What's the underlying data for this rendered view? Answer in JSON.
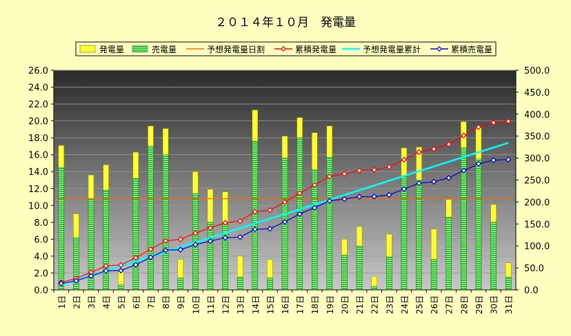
{
  "chart_data": {
    "type": "bar",
    "title": "２０１４年１０月　発電量",
    "categories": [
      "1日",
      "2日",
      "3日",
      "4日",
      "5日",
      "6日",
      "7日",
      "8日",
      "9日",
      "10日",
      "11日",
      "12日",
      "13日",
      "14日",
      "15日",
      "16日",
      "17日",
      "18日",
      "19日",
      "20日",
      "21日",
      "22日",
      "23日",
      "24日",
      "25日",
      "26日",
      "27日",
      "28日",
      "29日",
      "30日",
      "31日"
    ],
    "ylim": [
      0,
      26
    ],
    "y2lim": [
      0,
      500
    ],
    "yticks": [
      "0.0",
      "2.0",
      "4.0",
      "6.0",
      "8.0",
      "10.0",
      "12.0",
      "14.0",
      "16.0",
      "18.0",
      "20.0",
      "22.0",
      "24.0",
      "26.0"
    ],
    "y2ticks": [
      "0.0",
      "50.0",
      "100.0",
      "150.0",
      "200.0",
      "250.0",
      "300.0",
      "350.0",
      "400.0",
      "450.0",
      "500.0"
    ],
    "legend_position": "top",
    "grid": true,
    "series": [
      {
        "name": "発電量",
        "kind": "bar",
        "axis": "left",
        "color": "#ffff33",
        "values": [
          17.1,
          9.0,
          13.6,
          14.8,
          2.2,
          16.3,
          19.4,
          19.1,
          3.6,
          14.0,
          11.9,
          11.6,
          4.0,
          21.3,
          3.6,
          18.2,
          20.4,
          18.6,
          19.4,
          6.0,
          7.5,
          1.6,
          6.6,
          16.8,
          16.9,
          7.2,
          10.7,
          19.9,
          19.3,
          10.1,
          3.2
        ]
      },
      {
        "name": "売電量",
        "kind": "bar",
        "axis": "left",
        "color": "#33dd33",
        "values": [
          14.5,
          6.2,
          10.8,
          11.8,
          0.6,
          13.2,
          17.0,
          16.0,
          1.4,
          11.4,
          8.0,
          7.8,
          1.5,
          17.6,
          1.4,
          15.6,
          18.0,
          14.2,
          15.7,
          4.1,
          5.2,
          0.4,
          3.9,
          13.4,
          13.0,
          3.6,
          8.6,
          16.8,
          15.5,
          8.0,
          1.5
        ]
      },
      {
        "name": "予想発電量日割",
        "kind": "line",
        "axis": "left",
        "color": "#ff6600",
        "values": [
          10.8,
          10.8,
          10.8,
          10.8,
          10.8,
          10.8,
          10.8,
          10.8,
          10.8,
          10.8,
          10.8,
          10.8,
          10.8,
          10.8,
          10.8,
          10.8,
          10.8,
          10.8,
          10.8,
          10.8,
          10.8,
          10.8,
          10.8,
          10.8,
          10.8,
          10.8,
          10.8,
          10.8,
          10.8,
          10.8,
          10.8
        ]
      },
      {
        "name": "累積発電量",
        "kind": "line",
        "axis": "right",
        "color": "#ff0000",
        "values": [
          17.1,
          26.1,
          39.7,
          54.5,
          56.7,
          73.0,
          92.4,
          111.5,
          115.1,
          129.1,
          141.0,
          152.6,
          156.6,
          177.9,
          181.5,
          199.7,
          220.1,
          238.7,
          258.1,
          264.1,
          271.6,
          273.2,
          279.8,
          296.6,
          313.5,
          320.7,
          331.4,
          351.3,
          370.6,
          380.7,
          383.9
        ]
      },
      {
        "name": "予想発電量累計",
        "kind": "line",
        "axis": "right",
        "color": "#00ffff",
        "values": [
          10.8,
          21.6,
          32.4,
          43.2,
          54.0,
          64.8,
          75.6,
          86.4,
          97.2,
          108.0,
          118.8,
          129.6,
          140.4,
          151.2,
          162.0,
          172.8,
          183.6,
          194.4,
          205.2,
          216.0,
          226.8,
          237.6,
          248.4,
          259.2,
          270.0,
          280.8,
          291.6,
          302.4,
          313.2,
          324.0,
          334.8
        ]
      },
      {
        "name": "累積売電量",
        "kind": "line",
        "axis": "right",
        "color": "#0000cc",
        "values": [
          14.5,
          20.7,
          31.5,
          43.3,
          43.9,
          57.1,
          74.1,
          90.1,
          91.5,
          102.9,
          110.9,
          118.7,
          120.2,
          137.8,
          139.2,
          154.8,
          172.8,
          187.0,
          202.7,
          206.8,
          212.0,
          212.4,
          216.3,
          229.7,
          242.7,
          246.3,
          254.9,
          271.7,
          287.2,
          295.2,
          296.7
        ]
      }
    ]
  }
}
